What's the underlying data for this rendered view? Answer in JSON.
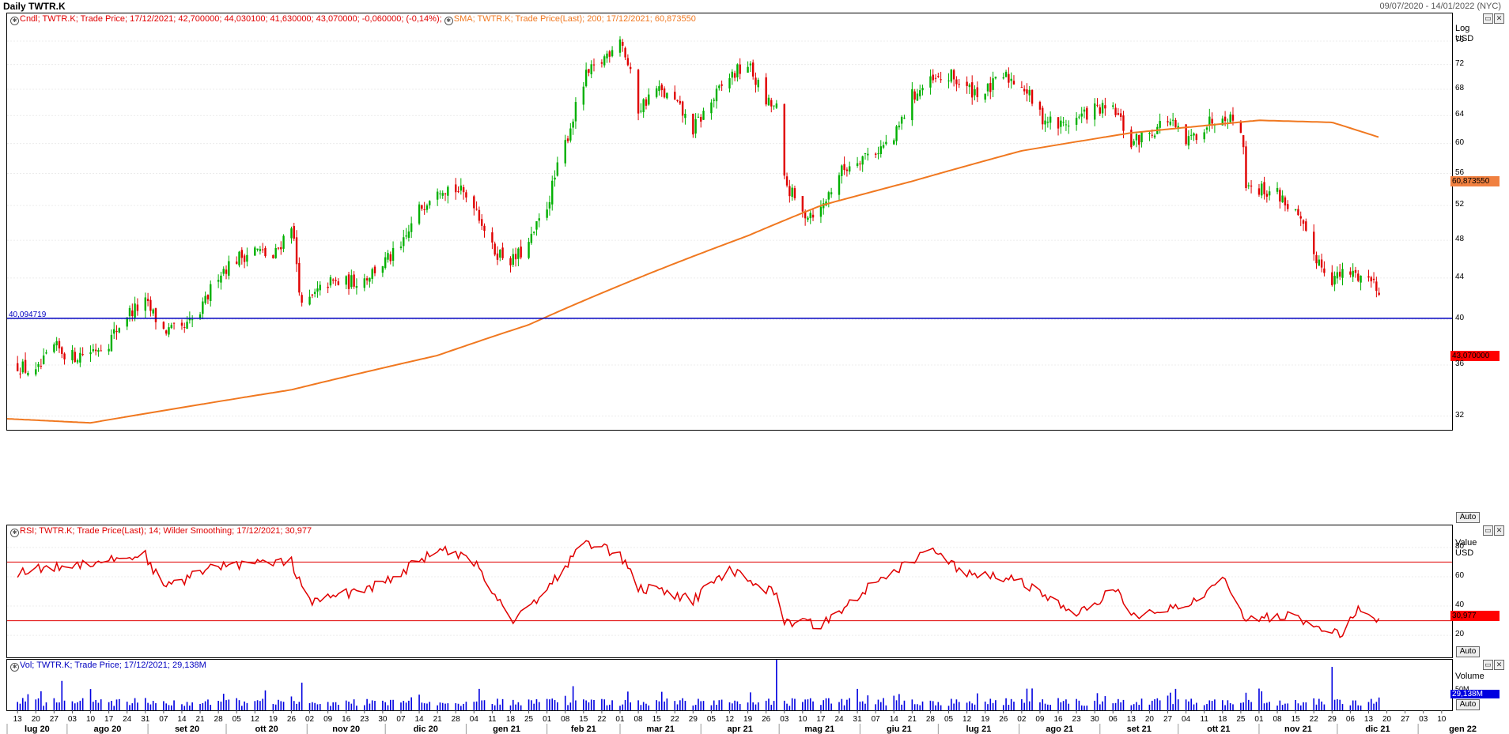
{
  "title": "Daily TWTR.K",
  "date_range": "09/07/2020 - 14/01/2022 (NYC)",
  "colors": {
    "candle_up": "#00b000",
    "candle_down": "#e00000",
    "sma": "#f07820",
    "rsi": "#e00000",
    "volume": "#0000e0",
    "hline": "#0000c0"
  },
  "icons": [
    "chart-settings-icon",
    "minimize-icon",
    "close-icon"
  ],
  "panes": {
    "price": {
      "header_cndl": "Cndl; TWTR.K; Trade Price; 17/12/2021; 42,700000; 44,030100; 41,630000; 43,070000; -0,060000; (-0,14%);",
      "header_sma": "SMA; TWTR.K; Trade Price(Last); 200; 17/12/2021; 60,873550",
      "axis_title_1": "Log",
      "axis_title_2": "USD",
      "last_price_tag": "43,070000",
      "sma_tag": "60,873550",
      "hline_label": "40,094719",
      "auto_label": "Auto"
    },
    "rsi": {
      "header": "RSI; TWTR.K; Trade Price(Last); 14; Wilder Smoothing; 17/12/2021; 30,977",
      "axis_title_1": "Value",
      "axis_title_2": "USD",
      "tag": "30,977",
      "auto_label": "Auto"
    },
    "volume": {
      "header": "Vol; TWTR.K; Trade Price; 17/12/2021; 29,138M",
      "axis_title": "Volume",
      "tick": "50M",
      "tag": "29,138M",
      "auto_label": "Auto"
    }
  },
  "chart_data": [
    {
      "type": "candlestick",
      "name": "TWTR.K",
      "scale": "log",
      "yticks": [
        32,
        36,
        40,
        44,
        48,
        52,
        56,
        60,
        64,
        68,
        72,
        76
      ],
      "ylim": [
        31,
        81
      ],
      "x_day_labels": [
        "13",
        "20",
        "27",
        "03",
        "10",
        "17",
        "24",
        "31",
        "07",
        "14",
        "21",
        "28",
        "05",
        "12",
        "19",
        "26",
        "02",
        "09",
        "16",
        "23",
        "30",
        "07",
        "14",
        "21",
        "28",
        "04",
        "11",
        "18",
        "25",
        "01",
        "08",
        "15",
        "22",
        "01",
        "08",
        "15",
        "22",
        "29",
        "05",
        "12",
        "19",
        "26",
        "03",
        "10",
        "17",
        "24",
        "31",
        "07",
        "14",
        "21",
        "28",
        "05",
        "12",
        "19",
        "26",
        "02",
        "09",
        "16",
        "23",
        "30",
        "06",
        "13",
        "20",
        "27",
        "04",
        "11",
        "18",
        "25",
        "01",
        "08",
        "15",
        "22",
        "29",
        "06",
        "13",
        "20",
        "27",
        "03",
        "10"
      ],
      "x_month_labels": [
        "lug 20",
        "ago 20",
        "set 20",
        "ott 20",
        "nov 20",
        "dic 20",
        "gen 21",
        "feb 21",
        "mar 21",
        "apr 21",
        "mag 21",
        "giu 21",
        "lug 21",
        "ago 21",
        "set 21",
        "ott 21",
        "nov 21",
        "dic 21",
        "gen 22"
      ],
      "key_closes": [
        {
          "date": "2020-07-13",
          "close": 36.0
        },
        {
          "date": "2020-07-20",
          "close": 35.2
        },
        {
          "date": "2020-07-27",
          "close": 37.5
        },
        {
          "date": "2020-08-03",
          "close": 36.7
        },
        {
          "date": "2020-08-10",
          "close": 37.2
        },
        {
          "date": "2020-08-17",
          "close": 38.0
        },
        {
          "date": "2020-08-24",
          "close": 40.5
        },
        {
          "date": "2020-08-31",
          "close": 41.5
        },
        {
          "date": "2020-09-07",
          "close": 39.0
        },
        {
          "date": "2020-09-14",
          "close": 38.9
        },
        {
          "date": "2020-09-21",
          "close": 40.5
        },
        {
          "date": "2020-09-28",
          "close": 44.5
        },
        {
          "date": "2020-10-05",
          "close": 46.0
        },
        {
          "date": "2020-10-12",
          "close": 47.0
        },
        {
          "date": "2020-10-19",
          "close": 46.0
        },
        {
          "date": "2020-10-26",
          "close": 50.0
        },
        {
          "date": "2020-10-30",
          "close": 41.0
        },
        {
          "date": "2020-11-09",
          "close": 43.5
        },
        {
          "date": "2020-11-16",
          "close": 43.5
        },
        {
          "date": "2020-11-23",
          "close": 44.0
        },
        {
          "date": "2020-11-30",
          "close": 45.5
        },
        {
          "date": "2020-12-07",
          "close": 47.0
        },
        {
          "date": "2020-12-14",
          "close": 51.5
        },
        {
          "date": "2020-12-21",
          "close": 54.5
        },
        {
          "date": "2020-12-28",
          "close": 54.0
        },
        {
          "date": "2021-01-04",
          "close": 52.5
        },
        {
          "date": "2021-01-11",
          "close": 47.0
        },
        {
          "date": "2021-01-19",
          "close": 45.8
        },
        {
          "date": "2021-01-25",
          "close": 47.5
        },
        {
          "date": "2021-02-01",
          "close": 52.0
        },
        {
          "date": "2021-02-08",
          "close": 60.0
        },
        {
          "date": "2021-02-16",
          "close": 70.0
        },
        {
          "date": "2021-02-22",
          "close": 72.5
        },
        {
          "date": "2021-03-01",
          "close": 77.0
        },
        {
          "date": "2021-03-08",
          "close": 65.0
        },
        {
          "date": "2021-03-15",
          "close": 68.0
        },
        {
          "date": "2021-03-22",
          "close": 66.0
        },
        {
          "date": "2021-03-29",
          "close": 62.0
        },
        {
          "date": "2021-04-05",
          "close": 66.0
        },
        {
          "date": "2021-04-12",
          "close": 70.0
        },
        {
          "date": "2021-04-19",
          "close": 72.0
        },
        {
          "date": "2021-04-26",
          "close": 66.0
        },
        {
          "date": "2021-04-30",
          "close": 65.0
        },
        {
          "date": "2021-05-03",
          "close": 55.0
        },
        {
          "date": "2021-05-10",
          "close": 51.0
        },
        {
          "date": "2021-05-17",
          "close": 51.5
        },
        {
          "date": "2021-05-24",
          "close": 56.0
        },
        {
          "date": "2021-05-31",
          "close": 58.0
        },
        {
          "date": "2021-06-07",
          "close": 59.0
        },
        {
          "date": "2021-06-14",
          "close": 60.5
        },
        {
          "date": "2021-06-21",
          "close": 67.0
        },
        {
          "date": "2021-06-28",
          "close": 69.0
        },
        {
          "date": "2021-07-06",
          "close": 70.0
        },
        {
          "date": "2021-07-12",
          "close": 68.0
        },
        {
          "date": "2021-07-19",
          "close": 67.5
        },
        {
          "date": "2021-07-26",
          "close": 70.0
        },
        {
          "date": "2021-08-02",
          "close": 69.0
        },
        {
          "date": "2021-08-09",
          "close": 64.0
        },
        {
          "date": "2021-08-16",
          "close": 62.5
        },
        {
          "date": "2021-08-23",
          "close": 63.5
        },
        {
          "date": "2021-08-30",
          "close": 65.0
        },
        {
          "date": "2021-09-07",
          "close": 64.5
        },
        {
          "date": "2021-09-13",
          "close": 60.0
        },
        {
          "date": "2021-09-20",
          "close": 61.5
        },
        {
          "date": "2021-09-27",
          "close": 63.5
        },
        {
          "date": "2021-10-04",
          "close": 60.0
        },
        {
          "date": "2021-10-11",
          "close": 62.5
        },
        {
          "date": "2021-10-18",
          "close": 64.5
        },
        {
          "date": "2021-10-25",
          "close": 62.5
        },
        {
          "date": "2021-10-27",
          "close": 55.0
        },
        {
          "date": "2021-11-01",
          "close": 54.0
        },
        {
          "date": "2021-11-08",
          "close": 53.5
        },
        {
          "date": "2021-11-15",
          "close": 51.0
        },
        {
          "date": "2021-11-22",
          "close": 46.5
        },
        {
          "date": "2021-11-29",
          "close": 44.0
        },
        {
          "date": "2021-12-06",
          "close": 44.5
        },
        {
          "date": "2021-12-13",
          "close": 44.0
        },
        {
          "date": "2021-12-17",
          "close": 43.07
        }
      ],
      "sma200_key_points": [
        {
          "date": "2020-07-09",
          "value": 31.8
        },
        {
          "date": "2020-08-10",
          "value": 31.5
        },
        {
          "date": "2020-10-26",
          "value": 34.0
        },
        {
          "date": "2020-12-21",
          "value": 36.8
        },
        {
          "date": "2021-01-25",
          "value": 39.5
        },
        {
          "date": "2021-03-08",
          "value": 44.0
        },
        {
          "date": "2021-04-19",
          "value": 48.5
        },
        {
          "date": "2021-05-17",
          "value": 52.0
        },
        {
          "date": "2021-06-21",
          "value": 55.0
        },
        {
          "date": "2021-08-02",
          "value": 59.0
        },
        {
          "date": "2021-09-13",
          "value": 61.5
        },
        {
          "date": "2021-11-01",
          "value": 63.3
        },
        {
          "date": "2021-11-29",
          "value": 63.0
        },
        {
          "date": "2021-12-17",
          "value": 60.87355
        }
      ],
      "horizontal_line": 40.094719
    },
    {
      "type": "line",
      "name": "RSI 14",
      "yticks": [
        20,
        40,
        60,
        80
      ],
      "ylim": [
        5,
        95
      ],
      "bands": [
        70,
        30
      ],
      "key_points": [
        {
          "date": "2020-07-13",
          "value": 63
        },
        {
          "date": "2020-08-31",
          "value": 75
        },
        {
          "date": "2020-09-07",
          "value": 52
        },
        {
          "date": "2020-09-28",
          "value": 68
        },
        {
          "date": "2020-10-26",
          "value": 70
        },
        {
          "date": "2020-11-02",
          "value": 42
        },
        {
          "date": "2020-11-30",
          "value": 55
        },
        {
          "date": "2020-12-21",
          "value": 79
        },
        {
          "date": "2021-01-04",
          "value": 70
        },
        {
          "date": "2021-01-19",
          "value": 30
        },
        {
          "date": "2021-02-01",
          "value": 52
        },
        {
          "date": "2021-02-16",
          "value": 84
        },
        {
          "date": "2021-03-01",
          "value": 75
        },
        {
          "date": "2021-03-08",
          "value": 53
        },
        {
          "date": "2021-03-29",
          "value": 44
        },
        {
          "date": "2021-04-12",
          "value": 65
        },
        {
          "date": "2021-04-30",
          "value": 48
        },
        {
          "date": "2021-05-03",
          "value": 30
        },
        {
          "date": "2021-05-17",
          "value": 27
        },
        {
          "date": "2021-06-07",
          "value": 57
        },
        {
          "date": "2021-06-28",
          "value": 78
        },
        {
          "date": "2021-07-12",
          "value": 62
        },
        {
          "date": "2021-08-02",
          "value": 57
        },
        {
          "date": "2021-08-23",
          "value": 33
        },
        {
          "date": "2021-09-07",
          "value": 52
        },
        {
          "date": "2021-09-13",
          "value": 33
        },
        {
          "date": "2021-10-04",
          "value": 40
        },
        {
          "date": "2021-10-18",
          "value": 59
        },
        {
          "date": "2021-10-27",
          "value": 32
        },
        {
          "date": "2021-11-15",
          "value": 33
        },
        {
          "date": "2021-12-03",
          "value": 19
        },
        {
          "date": "2021-12-09",
          "value": 40
        },
        {
          "date": "2021-12-17",
          "value": 30.977
        }
      ]
    },
    {
      "type": "bar",
      "name": "Volume",
      "ytick": 50,
      "last": 29.138,
      "spikes_M": [
        {
          "date": "2020-07-30",
          "value": 67
        },
        {
          "date": "2020-10-30",
          "value": 63
        },
        {
          "date": "2021-02-11",
          "value": 55
        },
        {
          "date": "2021-04-30",
          "value": 68
        },
        {
          "date": "2021-10-27",
          "value": 40
        },
        {
          "date": "2021-11-29",
          "value": 55
        },
        {
          "date": "2021-12-17",
          "value": 29.138
        }
      ],
      "baseline_M": 20
    }
  ]
}
